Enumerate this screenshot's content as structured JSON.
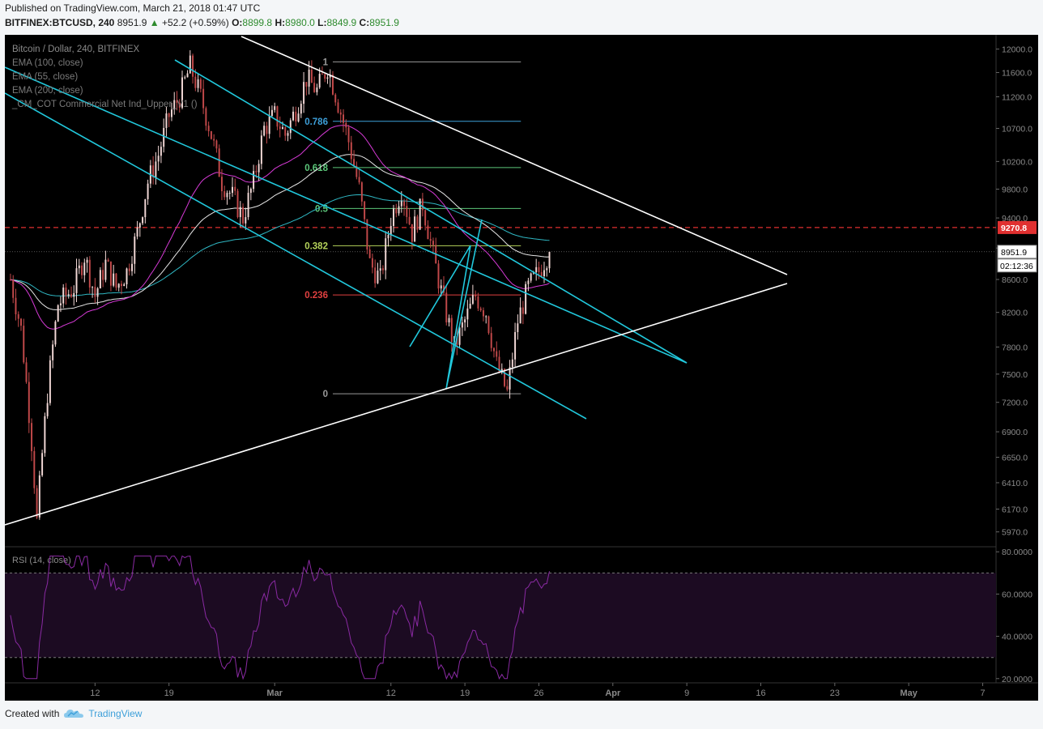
{
  "header": {
    "published": "Published on TradingView.com, March 21, 2018 01:47 UTC",
    "symbol": "BITFINEX:BTCUSD, 240",
    "last": "8951.9",
    "change_arrow": "▲",
    "change": "+52.2 (+0.59%)",
    "o_label": "O:",
    "o_value": "8899.8",
    "h_label": "H:",
    "h_value": "8980.0",
    "l_label": "L:",
    "l_value": "8849.9",
    "c_label": "C:",
    "c_value": "8951.9"
  },
  "footer": {
    "created_with": "Created with",
    "brand": "TradingView",
    "logo_icon": "tradingview-cloud-icon"
  },
  "chart_data": {
    "type": "candlestick",
    "title": "Bitcoin / Dollar, 240, BITFINEX",
    "legend": [
      "EMA (100, close)",
      "EMA (55, close)",
      "EMA (200, close)",
      "_CM_COT Commercial Net Ind_Upper_V1 ()"
    ],
    "price_axis": {
      "ticks": [
        "12000.0",
        "11600.0",
        "11200.0",
        "10700.0",
        "10200.0",
        "9800.0",
        "9400.0",
        "9000.0",
        "8600.0",
        "8200.0",
        "7800.0",
        "7500.0",
        "7200.0",
        "6900.0",
        "6650.0",
        "6410.0",
        "6170.0",
        "5970.0"
      ],
      "scale": "log",
      "ylim": [
        5850,
        12250
      ]
    },
    "time_axis": {
      "ticks": [
        "12",
        "19",
        "Mar",
        "12",
        "19",
        "26",
        "Apr",
        "9",
        "16",
        "23",
        "May",
        "7"
      ]
    },
    "price_labels": {
      "current_price": "8951.9",
      "countdown": "02:12:36",
      "resistance_level": "9270.8"
    },
    "colors": {
      "bull": "#f2d8d6",
      "bear": "#c2494a",
      "ema55": "#d63ad6",
      "ema100": "#e8e8e8",
      "ema200": "#2fb7c3",
      "channel": "#21c8dc",
      "triangle": "#ffffff",
      "resistance": "#e03030",
      "rsi": "#8a2aa3"
    },
    "fibonacci": [
      {
        "label": "1",
        "price": 11780,
        "color": "#9a9a9a"
      },
      {
        "label": "0.786",
        "price": 10810,
        "color": "#3d9fd9"
      },
      {
        "label": "0.618",
        "price": 10110,
        "color": "#5cc77a"
      },
      {
        "label": "0.5",
        "price": 9530,
        "color": "#5cc77a"
      },
      {
        "label": "0.382",
        "price": 9030,
        "color": "#b5d35a"
      },
      {
        "label": "0.236",
        "price": 8410,
        "color": "#e04040"
      },
      {
        "label": "0",
        "price": 7290,
        "color": "#9a9a9a"
      }
    ],
    "rsi": {
      "label": "RSI (14, close)",
      "ticks": [
        "80.0000",
        "60.0000",
        "40.0000",
        "20.0000"
      ],
      "ylim": [
        18,
        82
      ],
      "upper_band": 70,
      "lower_band": 30,
      "last_value": 63
    }
  }
}
